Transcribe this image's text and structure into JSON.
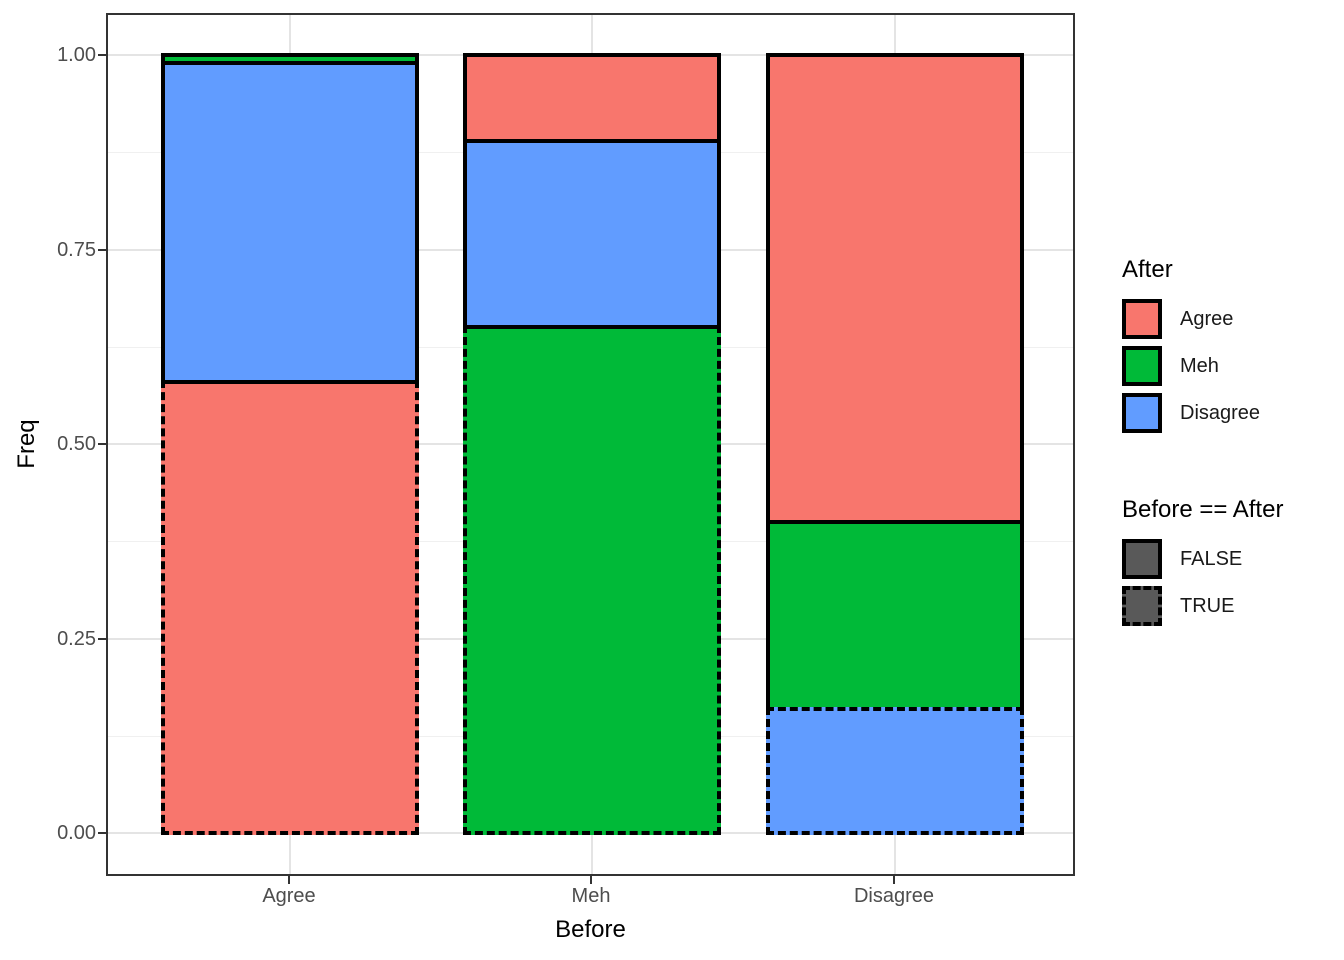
{
  "chart_data": {
    "type": "bar",
    "subtype": "stacked-fill",
    "title": "",
    "xlabel": "Before",
    "ylabel": "Freq",
    "categories": [
      "Agree",
      "Meh",
      "Disagree"
    ],
    "after_levels": [
      "Agree",
      "Meh",
      "Disagree"
    ],
    "ylim": [
      0,
      1
    ],
    "y_major_ticks": [
      0,
      0.25,
      0.5,
      0.75,
      1
    ],
    "y_tick_labels": [
      "0.00",
      "0.25",
      "0.50",
      "0.75",
      "1.00"
    ],
    "y_minor_ticks": [
      0.125,
      0.375,
      0.625,
      0.875
    ],
    "grid": true,
    "legend_position": "right",
    "fill_colors": {
      "Agree": "#F8766D",
      "Meh": "#00BA38",
      "Disagree": "#619CFF"
    },
    "bars": [
      {
        "before": "Agree",
        "segments": [
          {
            "after": "Agree",
            "value": 0.58,
            "match": true
          },
          {
            "after": "Disagree",
            "value": 0.41,
            "match": false
          },
          {
            "after": "Meh",
            "value": 0.01,
            "match": false
          }
        ]
      },
      {
        "before": "Meh",
        "segments": [
          {
            "after": "Meh",
            "value": 0.65,
            "match": true
          },
          {
            "after": "Disagree",
            "value": 0.24,
            "match": false
          },
          {
            "after": "Agree",
            "value": 0.11,
            "match": false
          }
        ]
      },
      {
        "before": "Disagree",
        "segments": [
          {
            "after": "Disagree",
            "value": 0.16,
            "match": true
          },
          {
            "after": "Meh",
            "value": 0.24,
            "match": false
          },
          {
            "after": "Agree",
            "value": 0.6,
            "match": false
          }
        ]
      }
    ]
  },
  "legends": {
    "fill": {
      "title": "After",
      "entries": [
        {
          "label": "Agree",
          "fill": "#F8766D",
          "linetype": "solid"
        },
        {
          "label": "Meh",
          "fill": "#00BA38",
          "linetype": "solid"
        },
        {
          "label": "Disagree",
          "fill": "#619CFF",
          "linetype": "solid"
        }
      ]
    },
    "linetype": {
      "title": "Before == After",
      "entries": [
        {
          "label": "FALSE",
          "fill": "#595959",
          "linetype": "solid"
        },
        {
          "label": "TRUE",
          "fill": "#595959",
          "linetype": "dashed"
        }
      ]
    }
  },
  "colors": {
    "panel_border": "#333333",
    "grid_major": "#E4E4E4",
    "grid_minor": "#F0F0F0",
    "tick_mark": "#333333",
    "tick_label": "#4D4D4D",
    "axis_title": "#000000",
    "segment_stroke": "#000000",
    "background": "#FFFFFF"
  }
}
